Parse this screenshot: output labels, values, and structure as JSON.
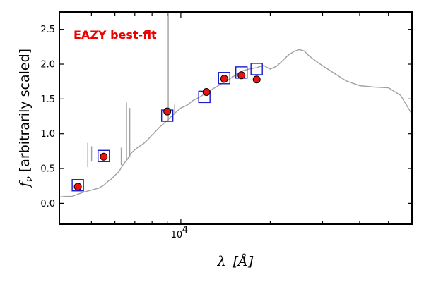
{
  "chart_data": {
    "type": "scatter",
    "title": "",
    "annotation": "EAZY best-fit",
    "xlabel_symbol": "λ",
    "xlabel_unit": "[Å]",
    "ylabel_symbol": "f",
    "ylabel_subscript": "ν",
    "ylabel_text": "[arbitrarily scaled]",
    "xscale": "log",
    "xlim": [
      3900,
      60000
    ],
    "ylim": [
      -0.3,
      2.75
    ],
    "yticks": [
      0.0,
      0.5,
      1.0,
      1.5,
      2.0,
      2.5
    ],
    "ytick_labels": [
      "0.0",
      "0.5",
      "1.0",
      "1.5",
      "2.0",
      "2.5"
    ],
    "xtick_major": [
      10000
    ],
    "xtick_major_labels": [
      "10"
    ],
    "xtick_major_exp": "4",
    "xtick_minor": [
      5000,
      6000,
      7000,
      8000,
      9000,
      20000,
      30000,
      40000,
      50000
    ],
    "colors": {
      "template": "#a0a0a0",
      "model": "#1a1acc",
      "observed": "#ee1111",
      "annotation": "#ee0000"
    },
    "series": [
      {
        "name": "template-spectrum",
        "kind": "line",
        "points": [
          [
            3900,
            0.09
          ],
          [
            4100,
            0.1
          ],
          [
            4300,
            0.1
          ],
          [
            4500,
            0.13
          ],
          [
            4700,
            0.16
          ],
          [
            4900,
            0.18
          ],
          [
            5100,
            0.2
          ],
          [
            5300,
            0.22
          ],
          [
            5500,
            0.26
          ],
          [
            5600,
            0.29
          ],
          [
            5700,
            0.32
          ],
          [
            5800,
            0.34
          ],
          [
            6000,
            0.4
          ],
          [
            6200,
            0.46
          ],
          [
            6400,
            0.56
          ],
          [
            6600,
            0.63
          ],
          [
            6800,
            0.72
          ],
          [
            7000,
            0.77
          ],
          [
            7200,
            0.81
          ],
          [
            7500,
            0.86
          ],
          [
            7800,
            0.93
          ],
          [
            8200,
            1.03
          ],
          [
            8600,
            1.12
          ],
          [
            9000,
            1.19
          ],
          [
            9500,
            1.29
          ],
          [
            10000,
            1.37
          ],
          [
            10500,
            1.41
          ],
          [
            11000,
            1.48
          ],
          [
            11500,
            1.52
          ],
          [
            12000,
            1.57
          ],
          [
            13000,
            1.66
          ],
          [
            14000,
            1.74
          ],
          [
            15000,
            1.82
          ],
          [
            16000,
            1.9
          ],
          [
            17000,
            1.93
          ],
          [
            18000,
            1.95
          ],
          [
            19000,
            1.98
          ],
          [
            20000,
            1.93
          ],
          [
            21000,
            1.97
          ],
          [
            22000,
            2.05
          ],
          [
            23000,
            2.13
          ],
          [
            24000,
            2.18
          ],
          [
            25000,
            2.21
          ],
          [
            26000,
            2.19
          ],
          [
            27000,
            2.12
          ],
          [
            29000,
            2.02
          ],
          [
            32000,
            1.9
          ],
          [
            36000,
            1.76
          ],
          [
            40000,
            1.69
          ],
          [
            45000,
            1.67
          ],
          [
            50000,
            1.66
          ],
          [
            55000,
            1.55
          ],
          [
            60000,
            1.28
          ]
        ]
      },
      {
        "name": "emission-lines",
        "kind": "spikes",
        "lines": [
          [
            4861,
            0.52,
            0.87
          ],
          [
            5007,
            0.6,
            0.82
          ],
          [
            6300,
            0.55,
            0.8
          ],
          [
            6563,
            0.62,
            1.45
          ],
          [
            6716,
            0.66,
            0.94
          ],
          [
            6731,
            0.67,
            1.37
          ],
          [
            9069,
            1.17,
            3.5
          ],
          [
            9532,
            1.27,
            1.42
          ]
        ]
      },
      {
        "name": "model-photometry",
        "kind": "open-square",
        "x": [
          4500,
          5500,
          9000,
          12000,
          14000,
          16000,
          18000
        ],
        "y": [
          0.26,
          0.68,
          1.26,
          1.53,
          1.8,
          1.88,
          1.93
        ]
      },
      {
        "name": "observed-photometry",
        "kind": "filled-circle",
        "x": [
          4500,
          5500,
          9000,
          12200,
          14000,
          16000,
          18000
        ],
        "y": [
          0.24,
          0.67,
          1.32,
          1.6,
          1.79,
          1.84,
          1.78
        ],
        "yerr": [
          0.02,
          0.02,
          0.02,
          0.02,
          0.05,
          0.05,
          0.02
        ]
      }
    ]
  }
}
